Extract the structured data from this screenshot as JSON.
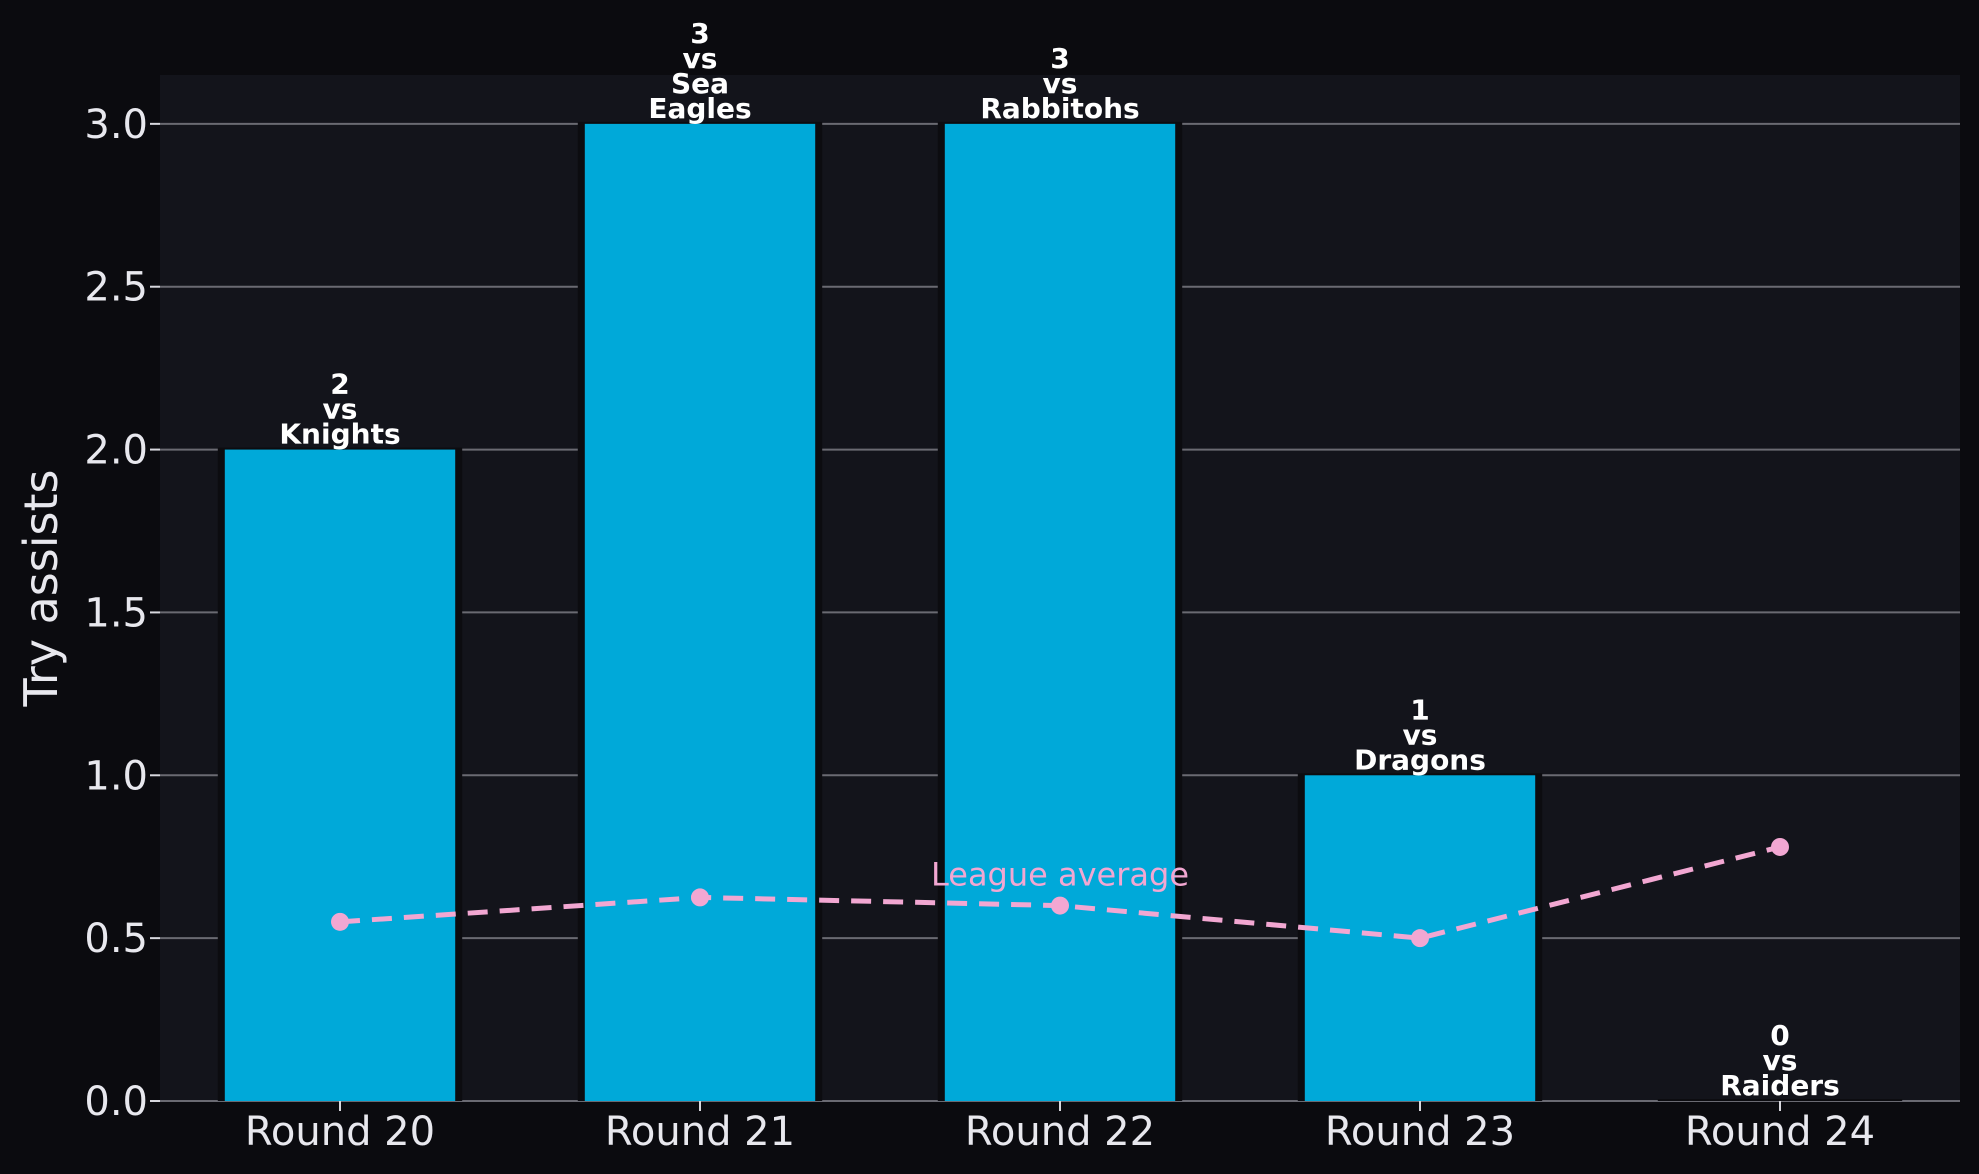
{
  "chart_data": {
    "type": "bar",
    "categories": [
      "Round 20",
      "Round 21",
      "Round 22",
      "Round 23",
      "Round 24"
    ],
    "values": [
      2,
      3,
      3,
      1,
      0
    ],
    "bar_labels": [
      [
        "2",
        "vs",
        "Knights"
      ],
      [
        "3",
        "vs",
        "Sea",
        "Eagles"
      ],
      [
        "3",
        "vs",
        "Rabbitohs"
      ],
      [
        "1",
        "vs",
        "Dragons"
      ],
      [
        "0",
        "vs",
        "Raiders"
      ]
    ],
    "series": [
      {
        "name": "League average",
        "type": "line",
        "style": "dashed",
        "values": [
          0.55,
          0.625,
          0.6,
          0.5,
          0.78
        ]
      }
    ],
    "title": "",
    "xlabel": "",
    "ylabel": "Try assists",
    "ylim": [
      0,
      3.15
    ],
    "yticks": [
      "0.0",
      "0.5",
      "1.0",
      "1.5",
      "2.0",
      "2.5",
      "3.0"
    ],
    "grid": "horizontal",
    "legend": "none",
    "colors": {
      "bar": "#00a9d9",
      "line": "#f2a7d2",
      "plot_background": "#13141b",
      "page_background": "#0b0b0f",
      "grid": "#6a6a72"
    }
  }
}
